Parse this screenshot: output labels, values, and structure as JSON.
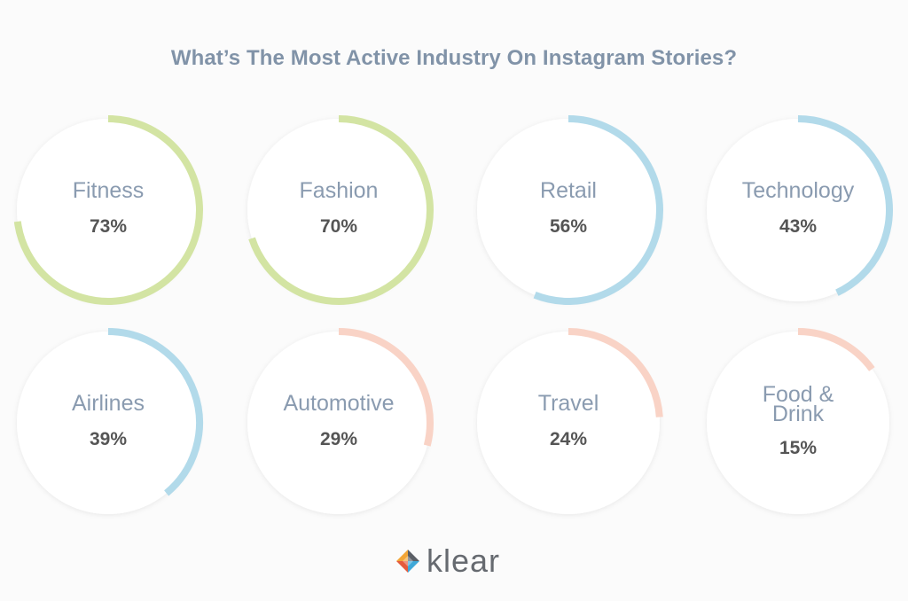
{
  "chart_data": {
    "type": "pie",
    "title": "What’s The Most Active Industry On Instagram Stories?",
    "categories": [
      "Fitness",
      "Fashion",
      "Retail",
      "Technology",
      "Airlines",
      "Automotive",
      "Travel",
      "Food & Drink"
    ],
    "values": [
      73,
      70,
      56,
      43,
      39,
      29,
      24,
      15
    ],
    "value_labels": [
      "73%",
      "70%",
      "56%",
      "43%",
      "39%",
      "29%",
      "24%",
      "15%"
    ],
    "colors": [
      "#d3e4a3",
      "#d3e4a3",
      "#b2daea",
      "#b2daea",
      "#b2daea",
      "#f9d3c6",
      "#f9d3c6",
      "#f9d3c6"
    ],
    "unit": "%"
  },
  "brand": {
    "name": "klear"
  }
}
